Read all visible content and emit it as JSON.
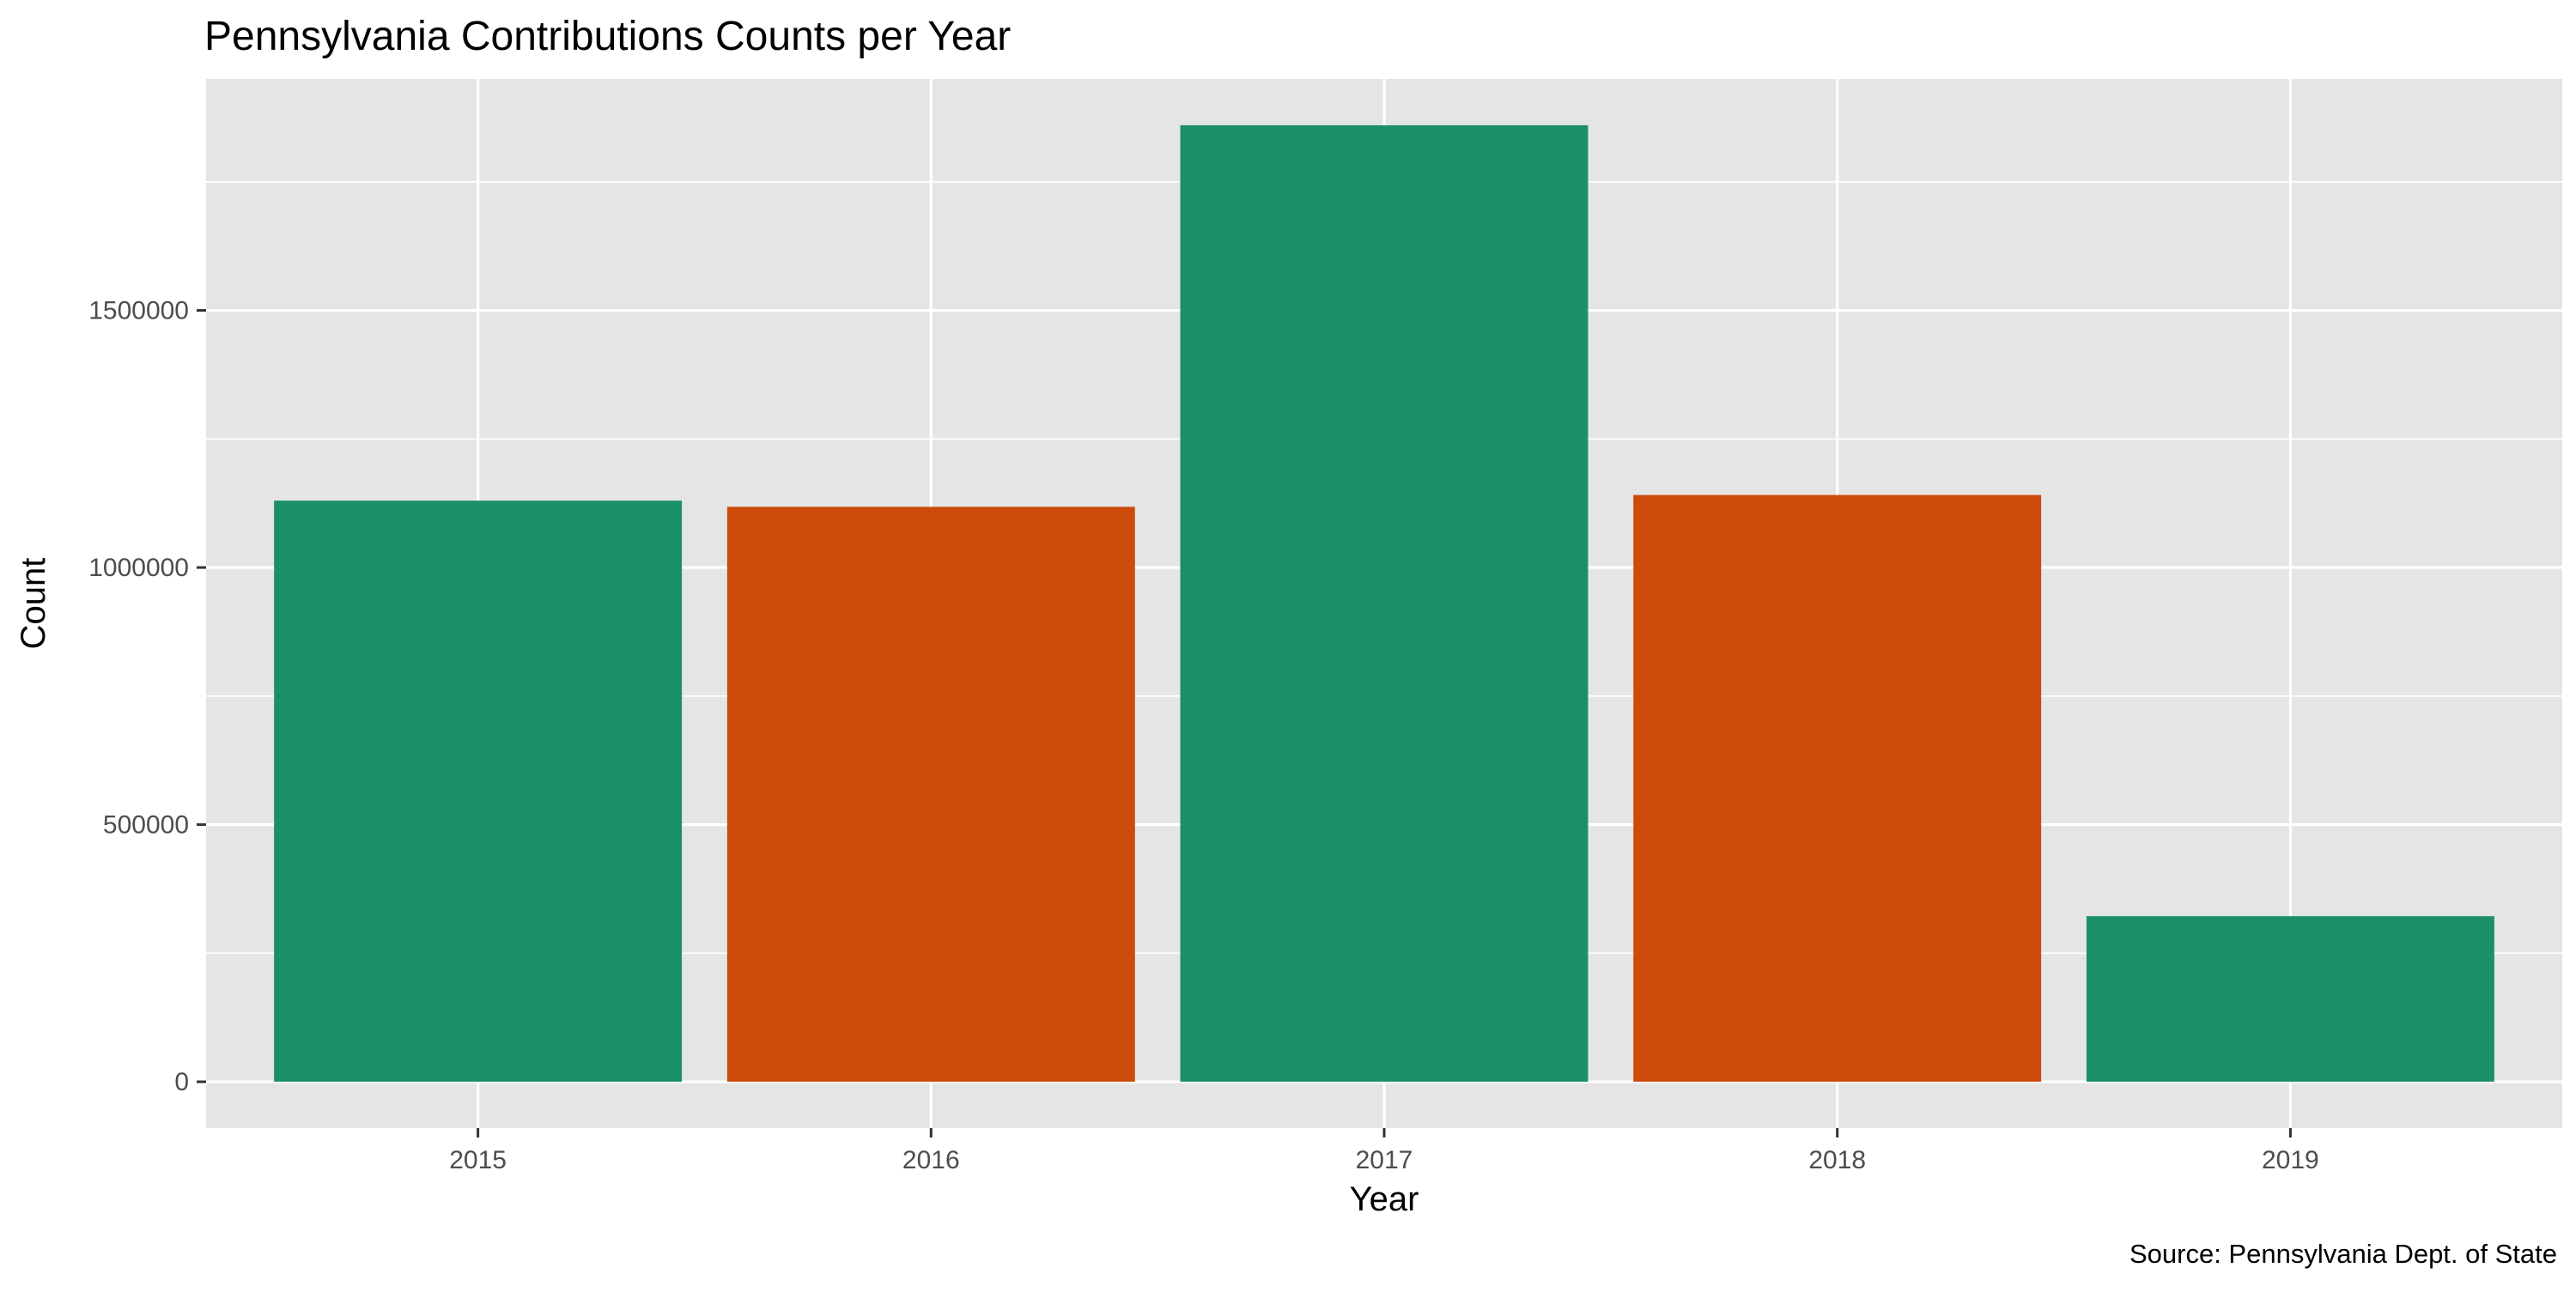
{
  "chart_data": {
    "type": "bar",
    "title": "Pennsylvania Contributions Counts per Year",
    "xlabel": "Year",
    "ylabel": "Count",
    "caption": "Source: Pennsylvania Dept. of State",
    "categories": [
      "2015",
      "2016",
      "2017",
      "2018",
      "2019"
    ],
    "values": [
      1130000,
      1118000,
      1860000,
      1141000,
      322000
    ],
    "bar_colors": [
      "#1b9068",
      "#cc4a0a",
      "#1b9068",
      "#cc4a0a",
      "#1b9068"
    ],
    "ylim": [
      -90000,
      1950000
    ],
    "yticks": [
      0,
      500000,
      1000000,
      1500000
    ],
    "ytick_labels": [
      "0",
      "500000",
      "1000000",
      "1500000"
    ],
    "grid": true,
    "legend": "none",
    "panel_background": "#e5e5e5",
    "grid_color": "#ffffff"
  }
}
